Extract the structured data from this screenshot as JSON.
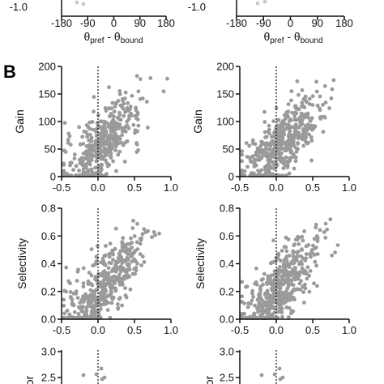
{
  "figure": {
    "panel_letter": "B",
    "top_xlabel": {
      "main": "θ",
      "sub1": "pref",
      "mid": " - θ",
      "sub2": "bound"
    }
  },
  "colors": {
    "points": "#9a9a9a",
    "axis": "#111111"
  },
  "chart_data": [
    {
      "id": "top-left-fragment",
      "type": "scatter",
      "xlim": [
        -180,
        180
      ],
      "xticks": [
        "-180",
        "-90",
        "0",
        "90",
        "180"
      ],
      "ytick_partial": "-1.0",
      "xlabel": "θpref - θbound"
    },
    {
      "id": "top-right-fragment",
      "type": "scatter",
      "xlim": [
        -180,
        180
      ],
      "xticks": [
        "-180",
        "-90",
        "0",
        "90",
        "180"
      ],
      "ytick_partial": "-1.0",
      "xlabel": "θpref - θbound"
    },
    {
      "id": "gain-left",
      "type": "scatter",
      "ylabel": "Gain",
      "xlim": [
        -0.5,
        1.0
      ],
      "ylim": [
        0,
        200
      ],
      "xticks": [
        "-0.5",
        "0.0",
        "0.5",
        "1.0"
      ],
      "yticks": [
        "0",
        "50",
        "100",
        "150",
        "200"
      ],
      "ref_line_x": 0
    },
    {
      "id": "gain-right",
      "type": "scatter",
      "ylabel": "Gain",
      "xlim": [
        -0.5,
        1.0
      ],
      "ylim": [
        0,
        200
      ],
      "xticks": [
        "-0.5",
        "0.0",
        "0.5",
        "1.0"
      ],
      "yticks": [
        "0",
        "50",
        "100",
        "150",
        "200"
      ],
      "ref_line_x": 0
    },
    {
      "id": "selectivity-left",
      "type": "scatter",
      "ylabel": "Selectivity",
      "xlim": [
        -0.5,
        1.0
      ],
      "ylim": [
        0,
        0.8
      ],
      "xticks": [
        "-0.5",
        "0.0",
        "0.5",
        "1.0"
      ],
      "yticks": [
        "0.0",
        "0.2",
        "0.4",
        "0.6",
        "0.8"
      ],
      "ref_line_x": 0
    },
    {
      "id": "selectivity-right",
      "type": "scatter",
      "ylabel": "Selectivity",
      "xlim": [
        -0.5,
        1.0
      ],
      "ylim": [
        0,
        0.8
      ],
      "xticks": [
        "-0.5",
        "0.0",
        "0.5",
        "1.0"
      ],
      "yticks": [
        "0.0",
        "0.2",
        "0.4",
        "0.6",
        "0.8"
      ],
      "ref_line_x": 0
    },
    {
      "id": "bottom-left-fragment",
      "type": "scatter",
      "ylabel_partial": "or",
      "yticks": [
        "2.5",
        "3.0"
      ],
      "ylim": [
        2.5,
        3.0
      ],
      "ref_line_x": 0
    },
    {
      "id": "bottom-right-fragment",
      "type": "scatter",
      "ylabel_partial": "or",
      "yticks": [
        "2.5",
        "3.0"
      ],
      "ylim": [
        2.5,
        3.0
      ],
      "ref_line_x": 0
    }
  ]
}
